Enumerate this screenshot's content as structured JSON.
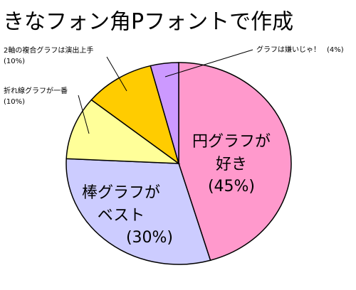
{
  "chart_data": {
    "type": "pie",
    "title": "きなフォン角Pフォントで作成",
    "categories": [
      [
        "円グラフが",
        "好き"
      ],
      [
        "棒グラフが",
        "ベスト"
      ],
      [
        "折れ線グラフが一番"
      ],
      [
        "2軸の複合グラフは演出上手"
      ],
      [
        "グラフは嫌いじゃ！"
      ]
    ],
    "values": [
      45,
      30,
      10,
      10,
      4
    ],
    "value_labels": [
      "(45%)",
      "(30%)",
      "(10%)",
      "(10%)",
      "(4%)"
    ],
    "colors": [
      "#ff99cc",
      "#ccccff",
      "#ffff99",
      "#ffcc00",
      "#cc99ff"
    ]
  }
}
